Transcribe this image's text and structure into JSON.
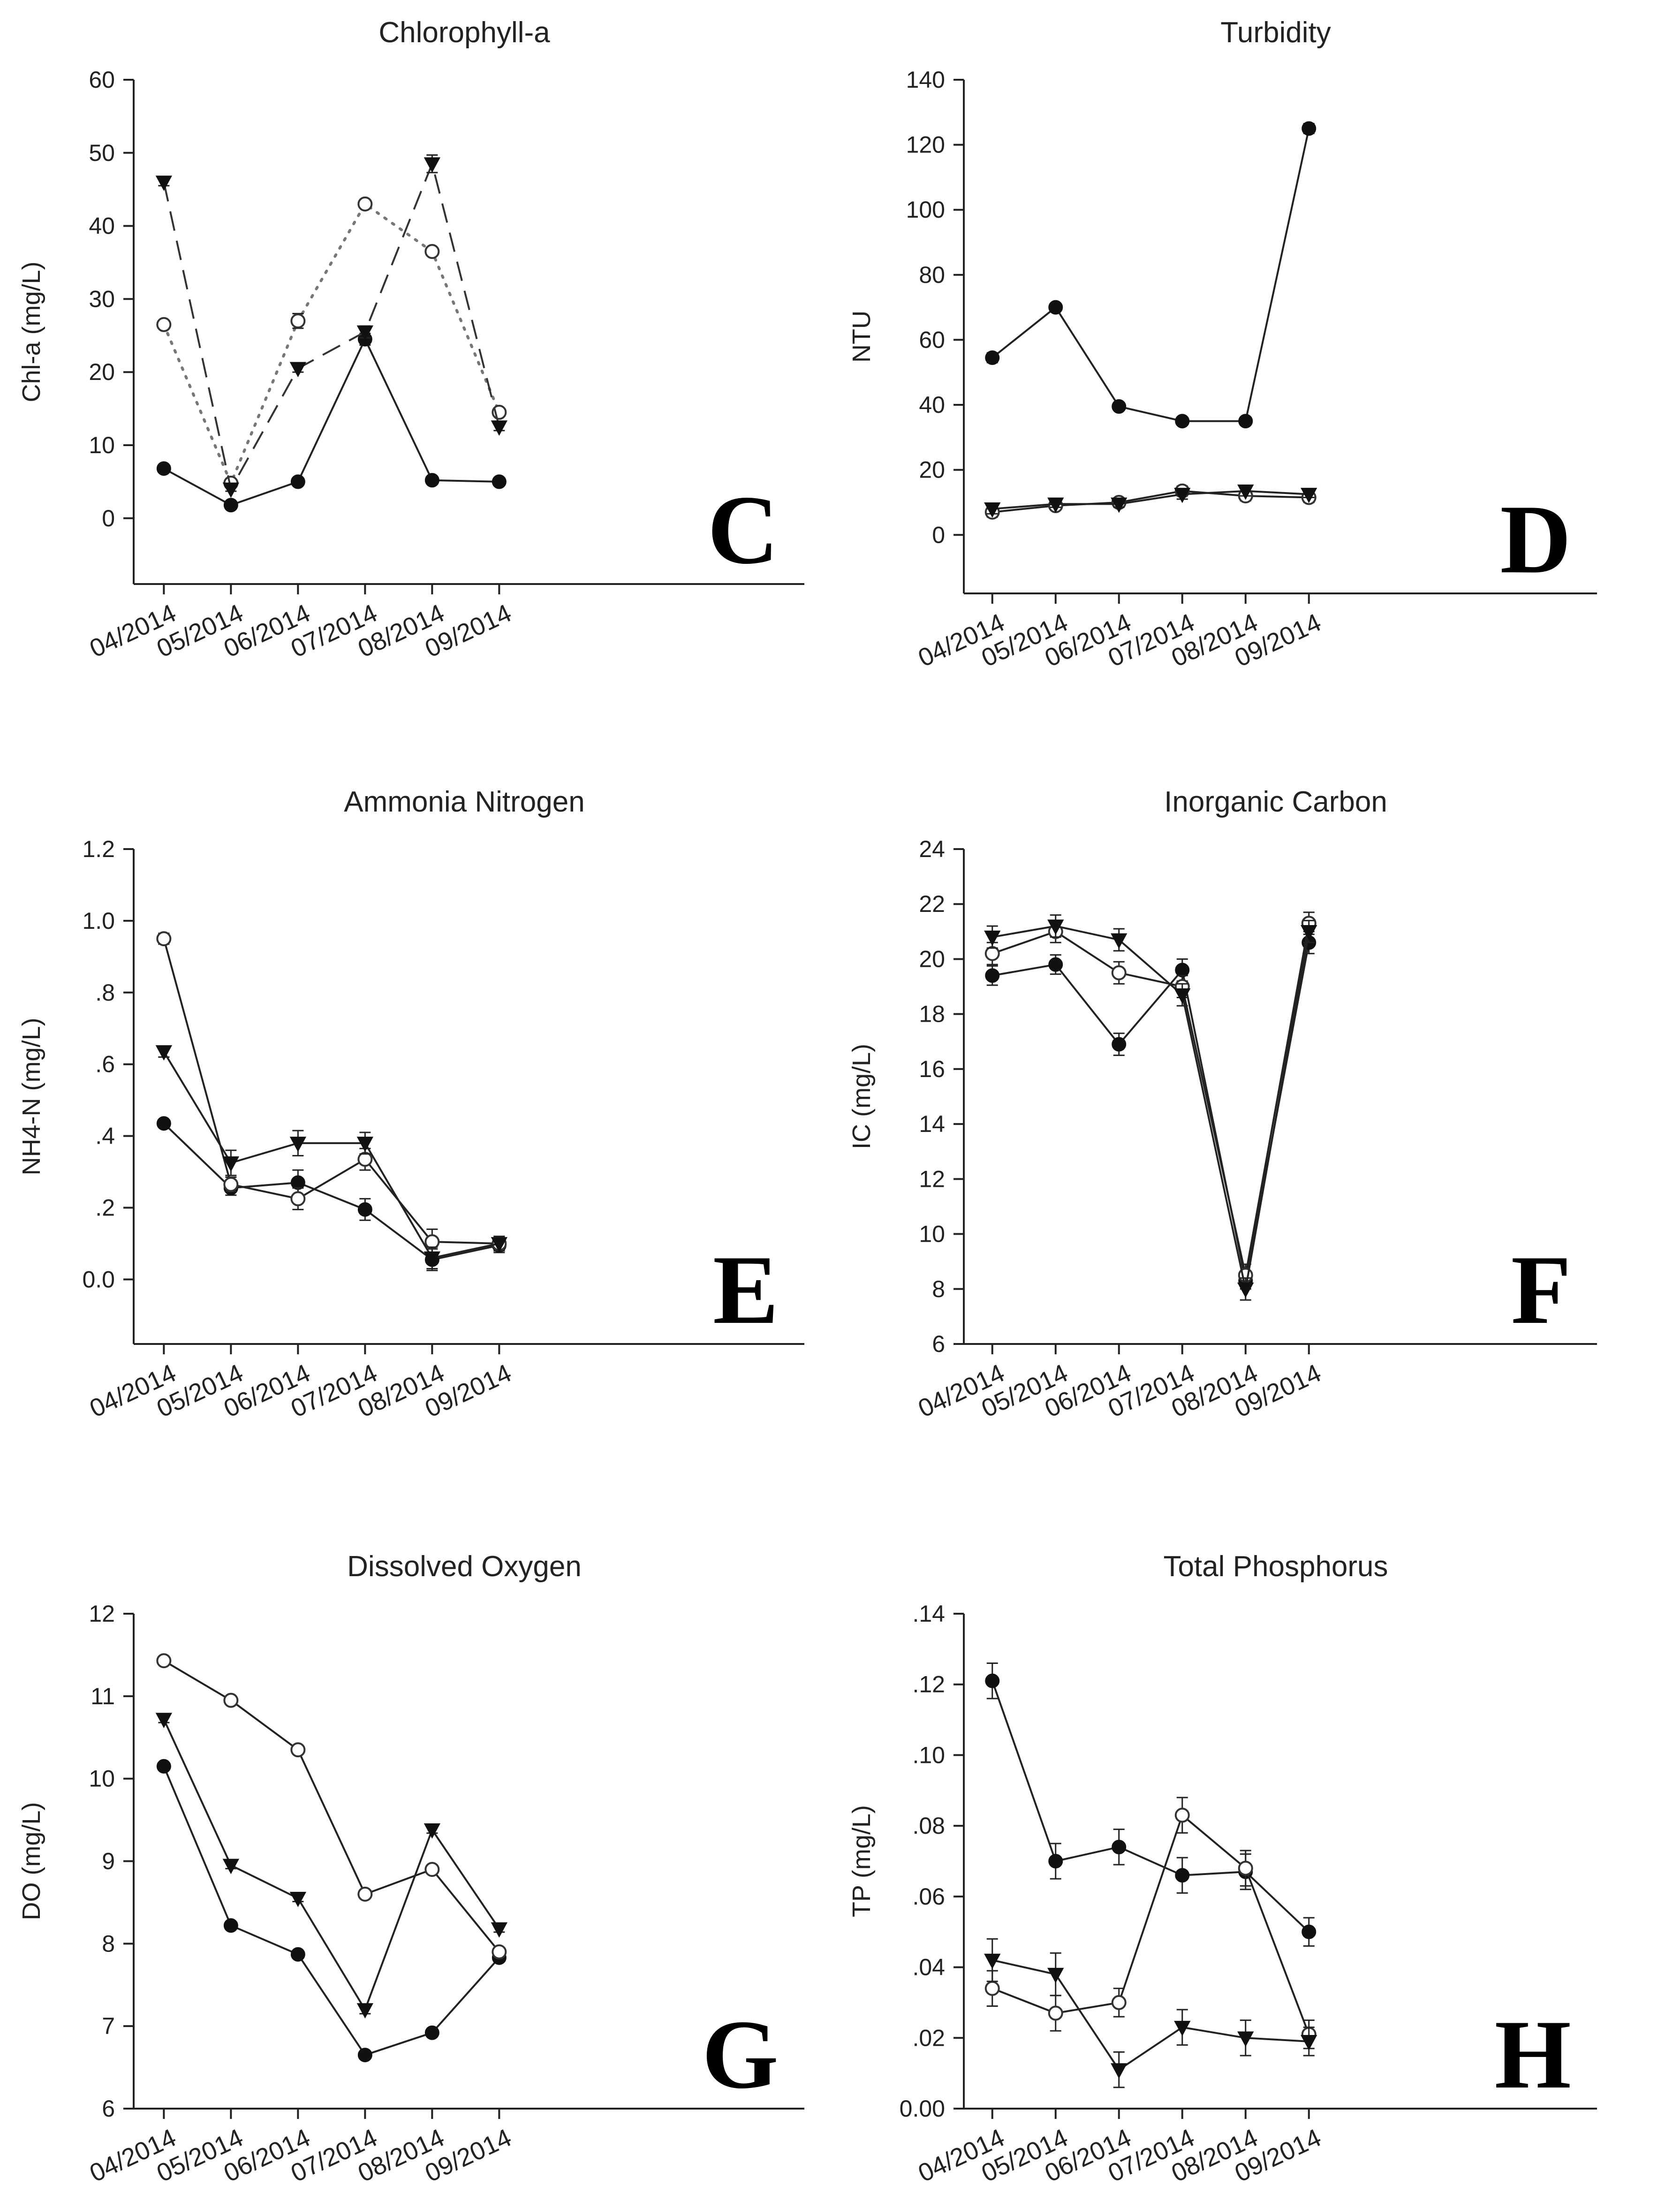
{
  "chart_data": [
    {
      "id": "C",
      "type": "line",
      "title": "Chlorophyll-a",
      "panel_letter": "C",
      "xlabel": "",
      "ylabel": "Chl-a (mg/L)",
      "categories": [
        "04/2014",
        "05/2014",
        "06/2014",
        "07/2014",
        "08/2014",
        "09/2014"
      ],
      "ylim": [
        -9,
        60
      ],
      "yticks": [
        0,
        10,
        20,
        30,
        40,
        50,
        60
      ],
      "ytick_labels": [
        "0",
        "10",
        "20",
        "30",
        "40",
        "50",
        "60"
      ],
      "series": [
        {
          "name": "filled circle",
          "marker": "circle-filled",
          "line": "solid",
          "values": [
            6.8,
            1.8,
            5.0,
            24.5,
            5.2,
            5.0
          ],
          "errors": [
            0.3,
            0.2,
            0.3,
            0.8,
            0.3,
            0.3
          ]
        },
        {
          "name": "open circle",
          "marker": "circle-open",
          "line": "dotted",
          "values": [
            26.5,
            4.8,
            27.0,
            43.0,
            36.5,
            14.5
          ],
          "errors": [
            0.5,
            0.3,
            1.0,
            0.5,
            0.5,
            0.5
          ]
        },
        {
          "name": "filled triangle",
          "marker": "triangle-filled",
          "line": "dashed",
          "values": [
            46.0,
            4.0,
            20.5,
            25.5,
            48.5,
            12.5
          ],
          "errors": [
            0.5,
            0.3,
            0.5,
            0.8,
            1.2,
            0.5
          ]
        }
      ]
    },
    {
      "id": "D",
      "type": "line",
      "title": "Turbidity",
      "panel_letter": "D",
      "xlabel": "",
      "ylabel": "NTU",
      "categories": [
        "04/2014",
        "05/2014",
        "06/2014",
        "07/2014",
        "08/2014",
        "09/2014"
      ],
      "ylim": [
        -18,
        140
      ],
      "yticks": [
        0,
        20,
        40,
        60,
        80,
        100,
        120,
        140
      ],
      "ytick_labels": [
        "0",
        "20",
        "40",
        "60",
        "80",
        "100",
        "120",
        "140"
      ],
      "series": [
        {
          "name": "filled circle",
          "marker": "circle-filled",
          "line": "solid",
          "values": [
            54.5,
            70.0,
            39.5,
            35.0,
            35.0,
            125.0
          ],
          "errors": [
            1.5,
            1.0,
            1.0,
            1.0,
            1.0,
            1.5
          ]
        },
        {
          "name": "open circle",
          "marker": "circle-open",
          "line": "solid",
          "values": [
            7.0,
            9.0,
            10.0,
            13.5,
            12.0,
            11.5
          ],
          "errors": [
            1.5,
            1.0,
            1.0,
            1.5,
            1.5,
            1.5
          ]
        },
        {
          "name": "filled triangle",
          "marker": "triangle-filled",
          "line": "solid",
          "values": [
            8.0,
            9.5,
            9.5,
            12.5,
            13.5,
            12.5
          ],
          "errors": [
            1.5,
            1.0,
            1.0,
            1.5,
            1.5,
            1.0
          ]
        }
      ]
    },
    {
      "id": "E",
      "type": "line",
      "title": "Ammonia Nitrogen",
      "panel_letter": "E",
      "xlabel": "",
      "ylabel": "NH4-N (mg/L)",
      "categories": [
        "04/2014",
        "05/2014",
        "06/2014",
        "07/2014",
        "08/2014",
        "09/2014"
      ],
      "ylim": [
        -0.18,
        1.2
      ],
      "yticks": [
        0.0,
        0.2,
        0.4,
        0.6,
        0.8,
        1.0,
        1.2
      ],
      "ytick_labels": [
        "0.0",
        ".2",
        ".4",
        ".6",
        ".8",
        "1.0",
        "1.2"
      ],
      "series": [
        {
          "name": "filled circle",
          "marker": "circle-filled",
          "line": "solid",
          "values": [
            0.435,
            0.255,
            0.27,
            0.195,
            0.055,
            0.095
          ],
          "errors": [
            0.01,
            0.02,
            0.035,
            0.03,
            0.03,
            0.02
          ]
        },
        {
          "name": "open circle",
          "marker": "circle-open",
          "line": "solid",
          "values": [
            0.95,
            0.265,
            0.225,
            0.335,
            0.105,
            0.1
          ],
          "errors": [
            0.015,
            0.02,
            0.03,
            0.03,
            0.035,
            0.02
          ]
        },
        {
          "name": "filled triangle",
          "marker": "triangle-filled",
          "line": "solid",
          "values": [
            0.635,
            0.325,
            0.38,
            0.38,
            0.06,
            0.1
          ],
          "errors": [
            0.015,
            0.035,
            0.035,
            0.03,
            0.03,
            0.02
          ]
        }
      ]
    },
    {
      "id": "F",
      "type": "line",
      "title": "Inorganic Carbon",
      "panel_letter": "F",
      "xlabel": "",
      "ylabel": "IC (mg/L)",
      "categories": [
        "04/2014",
        "05/2014",
        "06/2014",
        "07/2014",
        "08/2014",
        "09/2014"
      ],
      "ylim": [
        6,
        24
      ],
      "yticks": [
        6,
        8,
        10,
        12,
        14,
        16,
        18,
        20,
        22,
        24
      ],
      "ytick_labels": [
        "6",
        "8",
        "10",
        "12",
        "14",
        "16",
        "18",
        "20",
        "22",
        "24"
      ],
      "series": [
        {
          "name": "filled circle",
          "marker": "circle-filled",
          "line": "solid",
          "values": [
            19.4,
            19.8,
            16.9,
            19.6,
            8.3,
            20.6
          ],
          "errors": [
            0.35,
            0.35,
            0.4,
            0.4,
            0.3,
            0.4
          ]
        },
        {
          "name": "open circle",
          "marker": "circle-open",
          "line": "solid",
          "values": [
            20.2,
            21.0,
            19.5,
            19.0,
            8.5,
            21.3
          ],
          "errors": [
            0.4,
            0.4,
            0.4,
            0.4,
            0.4,
            0.4
          ]
        },
        {
          "name": "filled triangle",
          "marker": "triangle-filled",
          "line": "solid",
          "values": [
            20.8,
            21.2,
            20.7,
            18.7,
            8.0,
            21.0
          ],
          "errors": [
            0.4,
            0.4,
            0.4,
            0.4,
            0.4,
            0.4
          ]
        }
      ]
    },
    {
      "id": "G",
      "type": "line",
      "title": "Dissolved Oxygen",
      "panel_letter": "G",
      "xlabel": "",
      "ylabel": "DO (mg/L)",
      "categories": [
        "04/2014",
        "05/2014",
        "06/2014",
        "07/2014",
        "08/2014",
        "09/2014"
      ],
      "ylim": [
        6,
        12
      ],
      "yticks": [
        6,
        7,
        8,
        9,
        10,
        11,
        12
      ],
      "ytick_labels": [
        "6",
        "7",
        "8",
        "9",
        "10",
        "11",
        "12"
      ],
      "series": [
        {
          "name": "filled circle",
          "marker": "circle-filled",
          "line": "solid",
          "values": [
            10.15,
            8.22,
            7.87,
            6.65,
            6.92,
            7.83
          ],
          "errors": [
            0.04,
            0.04,
            0.04,
            0.04,
            0.04,
            0.04
          ]
        },
        {
          "name": "open circle",
          "marker": "circle-open",
          "line": "solid",
          "values": [
            11.43,
            10.95,
            10.35,
            8.6,
            8.9,
            7.9
          ],
          "errors": [
            0.04,
            0.04,
            0.05,
            0.04,
            0.05,
            0.04
          ]
        },
        {
          "name": "filled triangle",
          "marker": "triangle-filled",
          "line": "solid",
          "values": [
            10.72,
            8.95,
            8.55,
            7.2,
            9.38,
            8.18
          ],
          "errors": [
            0.04,
            0.04,
            0.04,
            0.05,
            0.04,
            0.04
          ]
        }
      ]
    },
    {
      "id": "H",
      "type": "line",
      "title": "Total Phosphorus",
      "panel_letter": "H",
      "xlabel": "",
      "ylabel": "TP (mg/L)",
      "categories": [
        "04/2014",
        "05/2014",
        "06/2014",
        "07/2014",
        "08/2014",
        "09/2014"
      ],
      "ylim": [
        0,
        0.14
      ],
      "yticks": [
        0,
        0.02,
        0.04,
        0.06,
        0.08,
        0.1,
        0.12,
        0.14
      ],
      "ytick_labels": [
        "0.00",
        ".02",
        ".04",
        ".06",
        ".08",
        ".10",
        ".12",
        ".14"
      ],
      "series": [
        {
          "name": "filled circle",
          "marker": "circle-filled",
          "line": "solid",
          "values": [
            0.121,
            0.07,
            0.074,
            0.066,
            0.067,
            0.05
          ],
          "errors": [
            0.005,
            0.005,
            0.005,
            0.005,
            0.005,
            0.004
          ]
        },
        {
          "name": "open circle",
          "marker": "circle-open",
          "line": "solid",
          "values": [
            0.034,
            0.027,
            0.03,
            0.083,
            0.068,
            0.021
          ],
          "errors": [
            0.005,
            0.005,
            0.004,
            0.005,
            0.005,
            0.004
          ]
        },
        {
          "name": "filled triangle",
          "marker": "triangle-filled",
          "line": "solid",
          "values": [
            0.042,
            0.038,
            0.011,
            0.023,
            0.02,
            0.019
          ],
          "errors": [
            0.006,
            0.006,
            0.005,
            0.005,
            0.005,
            0.004
          ]
        }
      ]
    }
  ]
}
